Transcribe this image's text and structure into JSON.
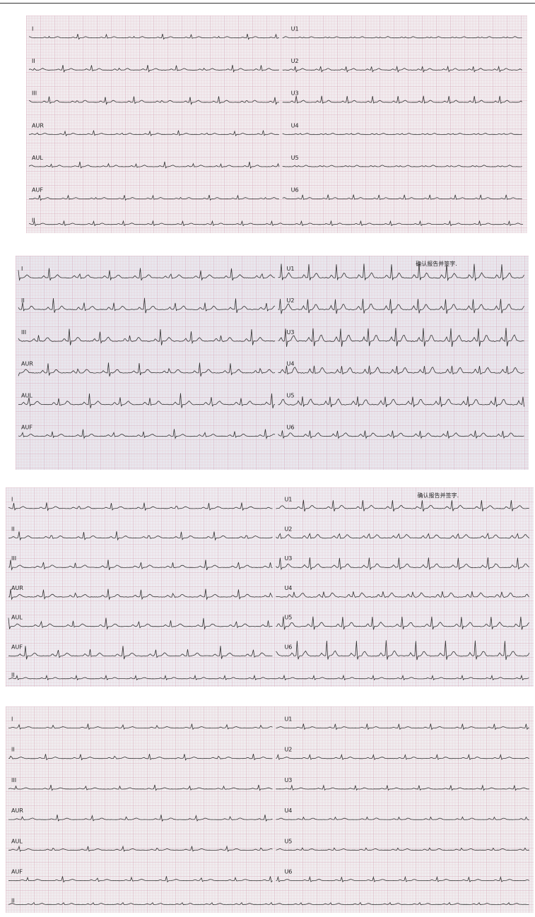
{
  "panels": [
    {
      "left_leads": [
        "I",
        "II",
        "III",
        "AUR",
        "AUL",
        "AUF"
      ],
      "right_leads": [
        "U1",
        "U2",
        "U3",
        "U4",
        "U5",
        "U6"
      ],
      "rhythm_lead": "II"
    },
    {
      "left_leads": [
        "I",
        "II",
        "III",
        "AUR",
        "AUL",
        "AUF"
      ],
      "right_leads": [
        "U1",
        "U2",
        "U3",
        "U4",
        "U5",
        "U6"
      ],
      "note": "确认报告并签字."
    },
    {
      "left_leads": [
        "I",
        "II",
        "III",
        "AUR",
        "AUL",
        "AUF"
      ],
      "right_leads": [
        "U1",
        "U2",
        "U3",
        "U4",
        "U5",
        "U6"
      ],
      "note": "确认报告并签字.",
      "rhythm_lead": "II"
    },
    {
      "left_leads": [
        "I",
        "II",
        "III",
        "AUR",
        "AUL",
        "AUF"
      ],
      "right_leads": [
        "U1",
        "U2",
        "U3",
        "U4",
        "U5",
        "U6"
      ],
      "rhythm_lead": "II"
    }
  ]
}
